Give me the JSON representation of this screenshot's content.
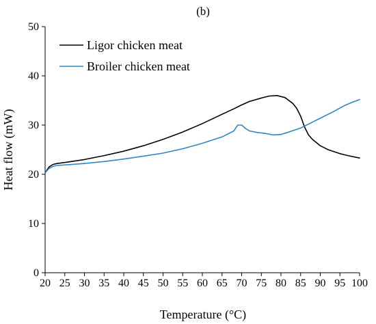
{
  "chart_data": {
    "type": "line",
    "panel_label": "(b)",
    "title": "",
    "xlabel": "Temperature (°C)",
    "ylabel": "Heat flow (mW)",
    "xlim": [
      20,
      100
    ],
    "ylim": [
      0,
      50
    ],
    "xticks": [
      20,
      25,
      30,
      35,
      40,
      45,
      50,
      55,
      60,
      65,
      70,
      75,
      80,
      85,
      90,
      95,
      100
    ],
    "yticks": [
      0,
      10,
      20,
      30,
      40,
      50
    ],
    "grid": false,
    "legend": "top-left",
    "series": [
      {
        "name": "Ligor chicken meat",
        "color": "#000000",
        "x": [
          20,
          21,
          22,
          23,
          25,
          30,
          35,
          40,
          45,
          50,
          55,
          60,
          65,
          68,
          70,
          72,
          75,
          77,
          79,
          81,
          83,
          84,
          85,
          86,
          87,
          88,
          90,
          92,
          95,
          97,
          100
        ],
        "y": [
          20.3,
          21.5,
          22.0,
          22.2,
          22.4,
          23.0,
          23.8,
          24.7,
          25.8,
          27.1,
          28.6,
          30.3,
          32.2,
          33.3,
          34.1,
          34.8,
          35.5,
          35.9,
          36.0,
          35.6,
          34.4,
          33.4,
          31.8,
          29.6,
          28.0,
          27.1,
          25.8,
          25.0,
          24.2,
          23.8,
          23.3
        ]
      },
      {
        "name": "Broiler chicken meat",
        "color": "#2E86C1",
        "x": [
          20,
          21,
          22,
          23,
          25,
          30,
          35,
          40,
          45,
          50,
          55,
          60,
          65,
          68,
          69,
          70,
          71,
          72,
          74,
          76,
          78,
          80,
          82,
          85,
          88,
          90,
          93,
          96,
          98,
          100
        ],
        "y": [
          20.3,
          21.2,
          21.6,
          21.8,
          21.9,
          22.2,
          22.6,
          23.1,
          23.7,
          24.3,
          25.2,
          26.3,
          27.6,
          28.8,
          30.0,
          30.0,
          29.3,
          28.8,
          28.5,
          28.3,
          28.0,
          28.1,
          28.6,
          29.4,
          30.6,
          31.4,
          32.6,
          33.9,
          34.6,
          35.2
        ]
      }
    ]
  }
}
